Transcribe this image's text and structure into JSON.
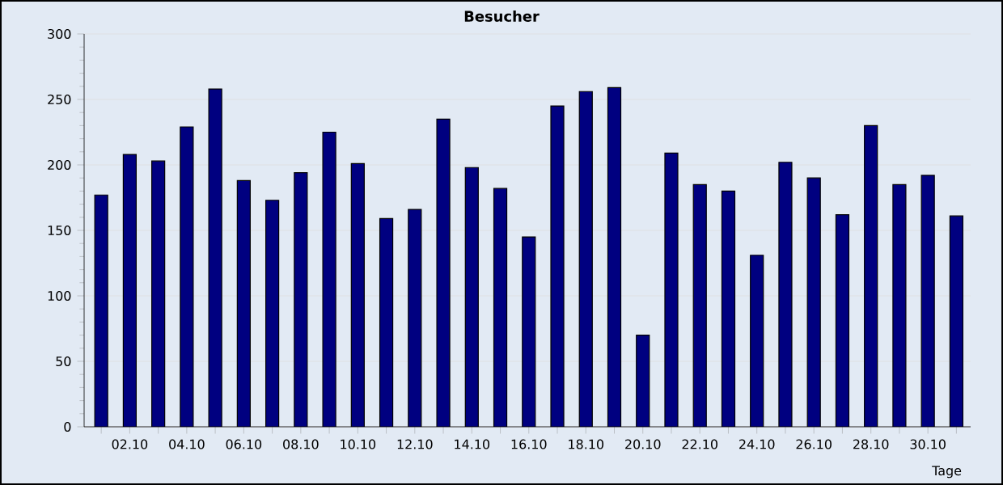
{
  "chart_data": {
    "type": "bar",
    "title": "Besucher",
    "xlabel": "Tage",
    "categories": [
      null,
      "02.10",
      null,
      "04.10",
      null,
      "06.10",
      null,
      "08.10",
      null,
      "10.10",
      null,
      "12.10",
      null,
      "14.10",
      null,
      "16.10",
      null,
      "18.10",
      null,
      "20.10",
      null,
      "22.10",
      null,
      "24.10",
      null,
      "26.10",
      null,
      "28.10",
      null,
      "30.10",
      null
    ],
    "values": [
      177,
      208,
      203,
      229,
      258,
      188,
      173,
      194,
      225,
      201,
      159,
      166,
      235,
      198,
      182,
      145,
      245,
      256,
      259,
      70,
      209,
      185,
      180,
      131,
      202,
      190,
      162,
      230,
      185,
      192,
      161
    ],
    "color": "#000080",
    "ylim": [
      0,
      300
    ],
    "yticks": [
      0,
      50,
      100,
      150,
      200,
      250,
      300
    ],
    "grid": "y"
  }
}
